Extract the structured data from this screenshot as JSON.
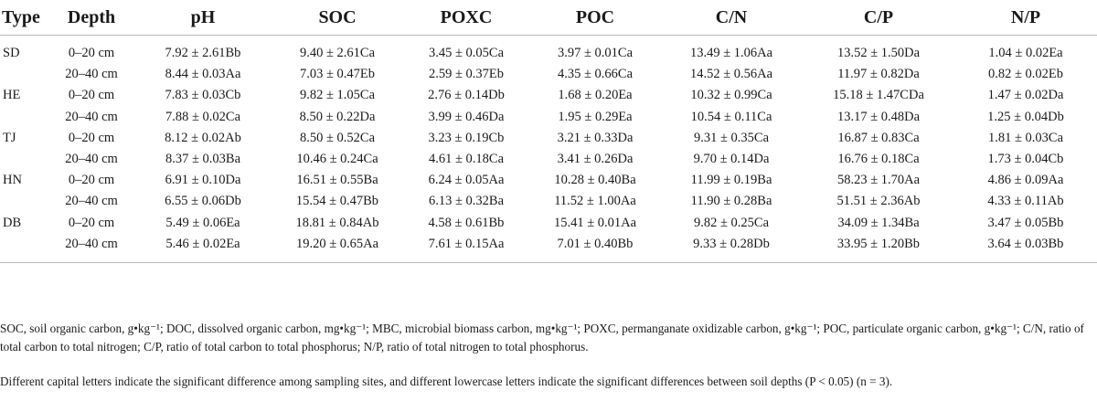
{
  "table": {
    "headers": [
      "Type",
      "Depth",
      "pH",
      "SOC",
      "POXC",
      "POC",
      "C/N",
      "C/P",
      "N/P"
    ],
    "rows": [
      [
        "SD",
        "0–20 cm",
        "7.92 ± 2.61Bb",
        "9.40 ± 2.61Ca",
        "3.45 ± 0.05Ca",
        "3.97 ± 0.01Ca",
        "13.49 ± 1.06Aa",
        "13.52 ± 1.50Da",
        "1.04 ± 0.02Ea"
      ],
      [
        "",
        "20–40 cm",
        "8.44 ± 0.03Aa",
        "7.03 ± 0.47Eb",
        "2.59 ± 0.37Eb",
        "4.35 ± 0.66Ca",
        "14.52 ± 0.56Aa",
        "11.97 ± 0.82Da",
        "0.82 ± 0.02Eb"
      ],
      [
        "HE",
        "0–20 cm",
        "7.83 ± 0.03Cb",
        "9.82 ± 1.05Ca",
        "2.76 ± 0.14Db",
        "1.68 ± 0.20Ea",
        "10.32 ± 0.99Ca",
        "15.18 ± 1.47CDa",
        "1.47 ± 0.02Da"
      ],
      [
        "",
        "20–40 cm",
        "7.88 ± 0.02Ca",
        "8.50 ± 0.22Da",
        "3.99 ± 0.46Da",
        "1.95 ± 0.29Ea",
        "10.54 ± 0.11Ca",
        "13.17 ± 0.48Da",
        "1.25 ± 0.04Db"
      ],
      [
        "TJ",
        "0–20 cm",
        "8.12 ± 0.02Ab",
        "8.50 ± 0.52Ca",
        "3.23 ± 0.19Cb",
        "3.21 ± 0.33Da",
        "9.31 ± 0.35Ca",
        "16.87 ± 0.83Ca",
        "1.81 ± 0.03Ca"
      ],
      [
        "",
        "20–40 cm",
        "8.37 ± 0.03Ba",
        "10.46 ± 0.24Ca",
        "4.61 ± 0.18Ca",
        "3.41 ± 0.26Da",
        "9.70 ± 0.14Da",
        "16.76 ± 0.18Ca",
        "1.73 ± 0.04Cb"
      ],
      [
        "HN",
        "0–20 cm",
        "6.91 ± 0.10Da",
        "16.51 ± 0.55Ba",
        "6.24 ± 0.05Aa",
        "10.28 ± 0.40Ba",
        "11.99 ± 0.19Ba",
        "58.23 ± 1.70Aa",
        "4.86 ± 0.09Aa"
      ],
      [
        "",
        "20–40 cm",
        "6.55 ± 0.06Db",
        "15.54 ± 0.47Bb",
        "6.13 ± 0.32Ba",
        "11.52 ± 1.00Aa",
        "11.90 ± 0.28Ba",
        "51.51 ± 2.36Ab",
        "4.33 ± 0.11Ab"
      ],
      [
        "DB",
        "0–20 cm",
        "5.49 ± 0.06Ea",
        "18.81 ± 0.84Ab",
        "4.58 ± 0.61Bb",
        "15.41 ± 0.01Aa",
        "9.82 ± 0.25Ca",
        "34.09 ± 1.34Ba",
        "3.47 ± 0.05Bb"
      ],
      [
        "",
        "20–40 cm",
        "5.46 ± 0.02Ea",
        "19.20 ± 0.65Aa",
        "7.61 ± 0.15Aa",
        "7.01 ± 0.40Bb",
        "9.33 ± 0.28Db",
        "33.95 ± 1.20Bb",
        "3.64 ± 0.03Bb"
      ]
    ]
  },
  "notes": {
    "abbreviations": "SOC, soil organic carbon, g•kg⁻¹; DOC, dissolved organic carbon, mg•kg⁻¹; MBC, microbial biomass carbon, mg•kg⁻¹; POXC, permanganate oxidizable carbon, g•kg⁻¹; POC, particulate organic carbon, g•kg⁻¹; C/N, ratio of total carbon to total nitrogen; C/P, ratio of total carbon to total phosphorus; N/P, ratio of total nitrogen to total phosphorus.",
    "significance": "Different capital letters indicate the significant difference among sampling sites, and different lowercase letters indicate the significant differences between soil depths (P < 0.05) (n = 3)."
  }
}
